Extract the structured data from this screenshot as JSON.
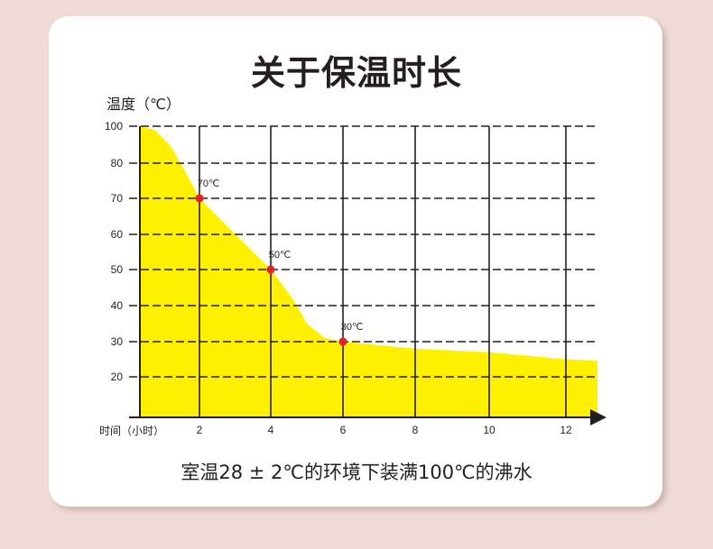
{
  "title": "关于保温时长",
  "subtitle": "室温28 ± 2℃的环境下装满100℃的沸水",
  "colors": {
    "fill": "#fff000",
    "marker": "#e8202a",
    "grid": "#231f20",
    "background": "#efdad6"
  },
  "chart_data": {
    "type": "area",
    "title": "关于保温时长",
    "xlabel": "时间（小时）",
    "ylabel": "温度（℃）",
    "x_ticks": [
      2,
      4,
      6,
      8,
      10,
      12
    ],
    "y_ticks": [
      20,
      30,
      40,
      50,
      60,
      70,
      80,
      100
    ],
    "grid": true,
    "curve": [
      [
        0,
        100
      ],
      [
        0.5,
        98
      ],
      [
        1,
        90
      ],
      [
        1.5,
        78
      ],
      [
        2,
        70
      ],
      [
        3,
        60
      ],
      [
        4,
        50
      ],
      [
        4.6,
        42
      ],
      [
        5,
        35
      ],
      [
        5.5,
        31
      ],
      [
        6,
        30
      ],
      [
        8,
        28
      ],
      [
        10,
        27
      ],
      [
        12,
        25
      ],
      [
        13,
        24.5
      ]
    ],
    "markers": [
      {
        "x": 2,
        "y": 70,
        "label": "70℃"
      },
      {
        "x": 4,
        "y": 50,
        "label": "50℃"
      },
      {
        "x": 6,
        "y": 30,
        "label": "30℃"
      }
    ]
  }
}
